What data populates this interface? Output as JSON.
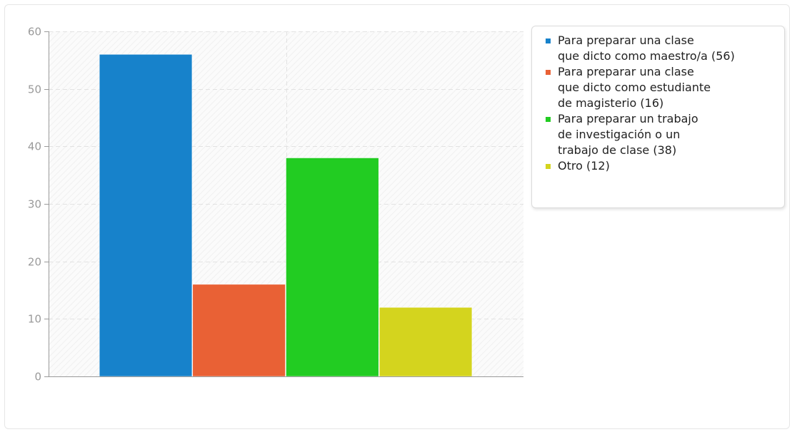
{
  "chart_data": {
    "type": "bar",
    "title": "",
    "xlabel": "",
    "ylabel": "",
    "ylim": [
      0,
      60
    ],
    "yticks": [
      0,
      10,
      20,
      30,
      40,
      50,
      60
    ],
    "grid": true,
    "legend_position": "right",
    "series": [
      {
        "name": "Para preparar una clase\nque dicto como maestro/a (56)",
        "value": 56,
        "color": "#1782cb"
      },
      {
        "name": "Para preparar una clase\nque dicto como estudiante\nde magisterio (16)",
        "value": 16,
        "color": "#e96135"
      },
      {
        "name": "Para preparar un trabajo\nde investigación o un\ntrabajo de clase (38)",
        "value": 38,
        "color": "#22cc22"
      },
      {
        "name": "Otro (12)",
        "value": 12,
        "color": "#d4d41e"
      }
    ]
  }
}
